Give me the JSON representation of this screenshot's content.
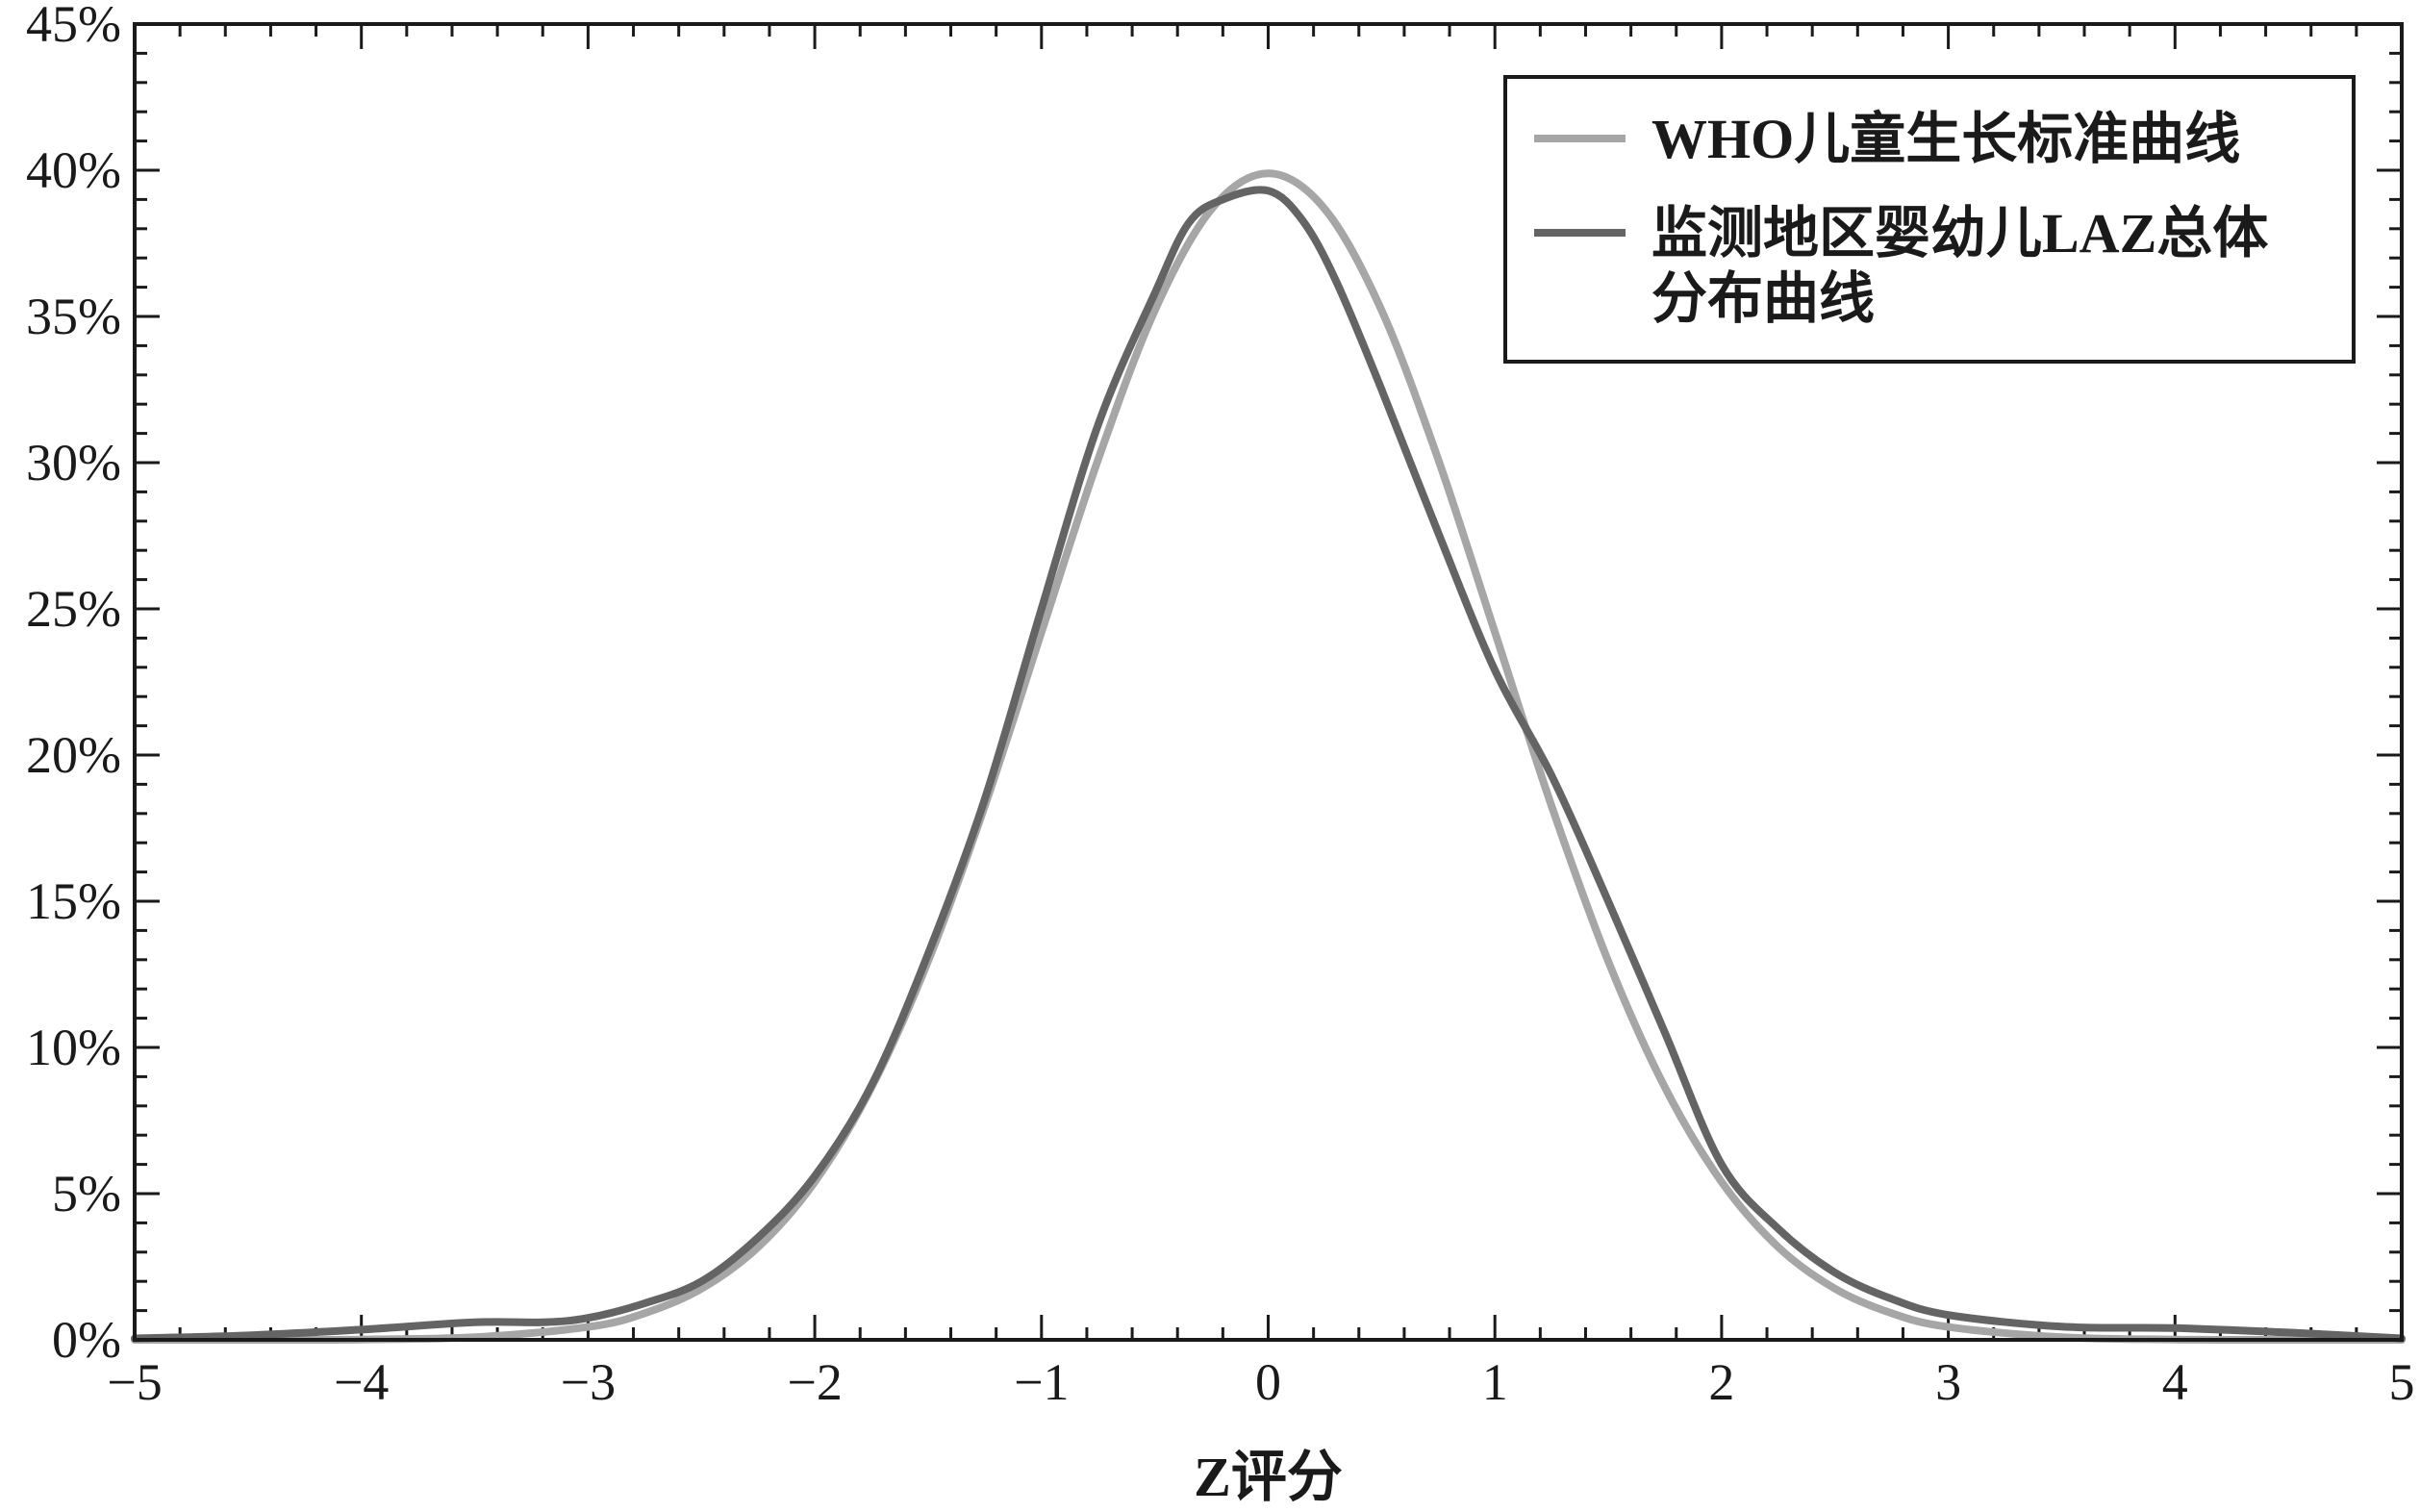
{
  "chart_data": {
    "type": "line",
    "title": "",
    "xlabel": "Z评分",
    "ylabel": "",
    "xlim": [
      -5,
      5
    ],
    "ylim": [
      0,
      45
    ],
    "x_ticks": [
      -5,
      -4,
      -3,
      -2,
      -1,
      0,
      1,
      2,
      3,
      4,
      5
    ],
    "x_tick_labels": [
      "−5",
      "−4",
      "−3",
      "−2",
      "−1",
      "0",
      "1",
      "2",
      "3",
      "4",
      "5"
    ],
    "y_ticks": [
      0,
      5,
      10,
      15,
      20,
      25,
      30,
      35,
      40,
      45
    ],
    "y_tick_labels": [
      "0%",
      "5%",
      "10%",
      "15%",
      "20%",
      "25%",
      "30%",
      "35%",
      "40%",
      "45%"
    ],
    "grid": false,
    "legend_position": "top-right",
    "series": [
      {
        "name": "WHO儿童生长标准曲线",
        "color": "#a6a6a6",
        "x": [
          -5,
          -4.5,
          -4,
          -3.5,
          -3,
          -2.75,
          -2.5,
          -2.25,
          -2,
          -1.75,
          -1.5,
          -1.25,
          -1,
          -0.75,
          -0.5,
          -0.25,
          0,
          0.25,
          0.5,
          0.75,
          1,
          1.25,
          1.5,
          1.75,
          2,
          2.25,
          2.5,
          2.75,
          3,
          3.5,
          4,
          4.5,
          5
        ],
        "y": [
          0.0,
          0.0,
          0.01,
          0.09,
          0.44,
          0.91,
          1.75,
          3.17,
          5.4,
          8.63,
          12.95,
          18.26,
          24.2,
          30.11,
          35.21,
          38.67,
          39.89,
          38.67,
          35.21,
          30.11,
          24.2,
          18.26,
          12.95,
          8.63,
          5.4,
          3.17,
          1.75,
          0.91,
          0.44,
          0.09,
          0.01,
          0.0,
          0.0
        ]
      },
      {
        "name": "监测地区婴幼儿LAZ总体分布曲线",
        "color": "#646464",
        "x": [
          -5,
          -4.5,
          -4,
          -3.5,
          -3.2,
          -3,
          -2.75,
          -2.5,
          -2.25,
          -2,
          -1.75,
          -1.5,
          -1.25,
          -1,
          -0.75,
          -0.5,
          -0.35,
          -0.2,
          0,
          0.15,
          0.3,
          0.5,
          0.75,
          1,
          1.25,
          1.5,
          1.75,
          2,
          2.25,
          2.5,
          2.75,
          3,
          3.5,
          4,
          4.5,
          5
        ],
        "y": [
          0.05,
          0.15,
          0.35,
          0.6,
          0.6,
          0.75,
          1.25,
          2.0,
          3.5,
          5.6,
          8.7,
          13.2,
          18.5,
          25.0,
          31.3,
          35.8,
          38.2,
          39.0,
          39.3,
          38.3,
          36.2,
          32.5,
          27.6,
          22.9,
          19.3,
          15.0,
          10.5,
          6.0,
          3.8,
          2.3,
          1.4,
          0.85,
          0.45,
          0.4,
          0.25,
          0.05
        ]
      }
    ]
  }
}
